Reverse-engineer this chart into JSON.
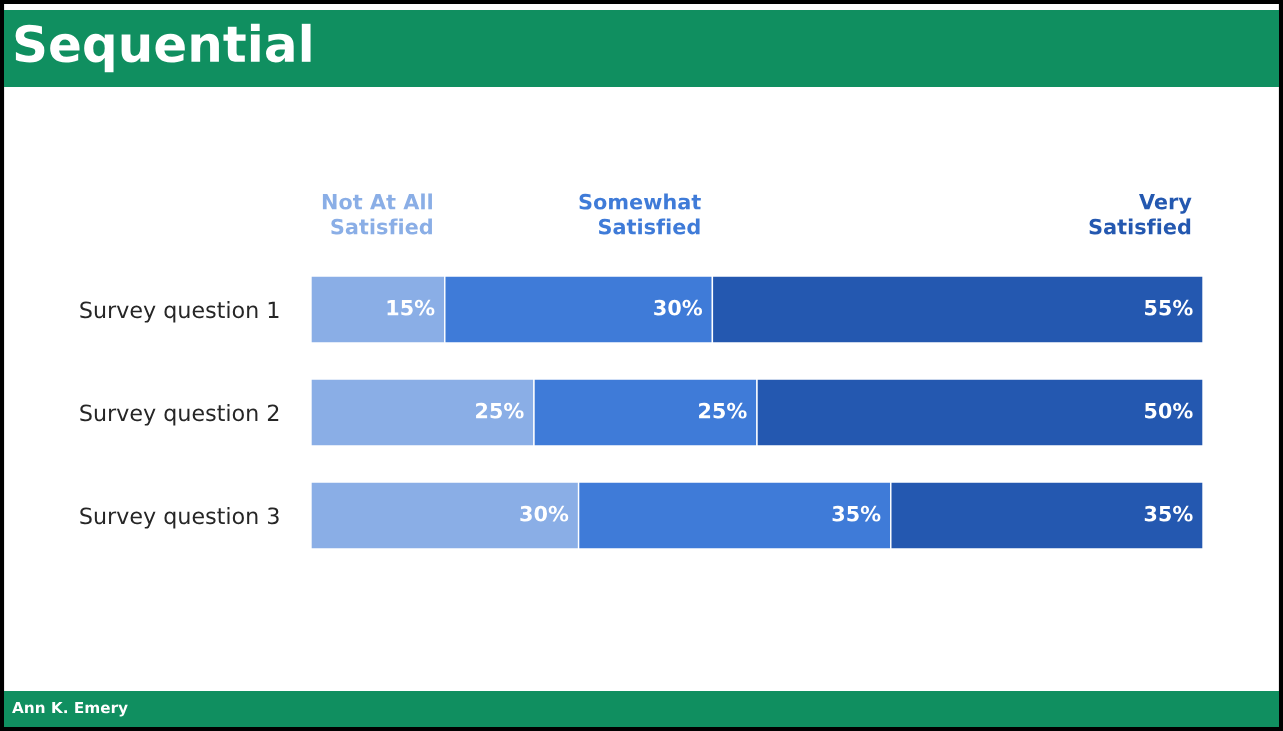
{
  "chart_data": {
    "type": "bar",
    "orientation": "horizontal",
    "stacked": true,
    "title": "Sequential",
    "categories": [
      "Survey question 1",
      "Survey question 2",
      "Survey question 3"
    ],
    "series": [
      {
        "name": "Not At All\nSatisfied",
        "color": "#8aaee6",
        "values": [
          15,
          25,
          30
        ],
        "value_labels": [
          "15%",
          "25%",
          "30%"
        ]
      },
      {
        "name": "Somewhat\nSatisfied",
        "color": "#3f7bd8",
        "values": [
          30,
          25,
          35
        ],
        "value_labels": [
          "30%",
          "25%",
          "35%"
        ]
      },
      {
        "name": "Very\nSatisfied",
        "color": "#2458b0",
        "values": [
          55,
          50,
          35
        ],
        "value_labels": [
          "55%",
          "50%",
          "35%"
        ]
      }
    ],
    "tick_labels": "y",
    "grid": false,
    "annotations": [
      "Ann K. Emery"
    ]
  }
}
